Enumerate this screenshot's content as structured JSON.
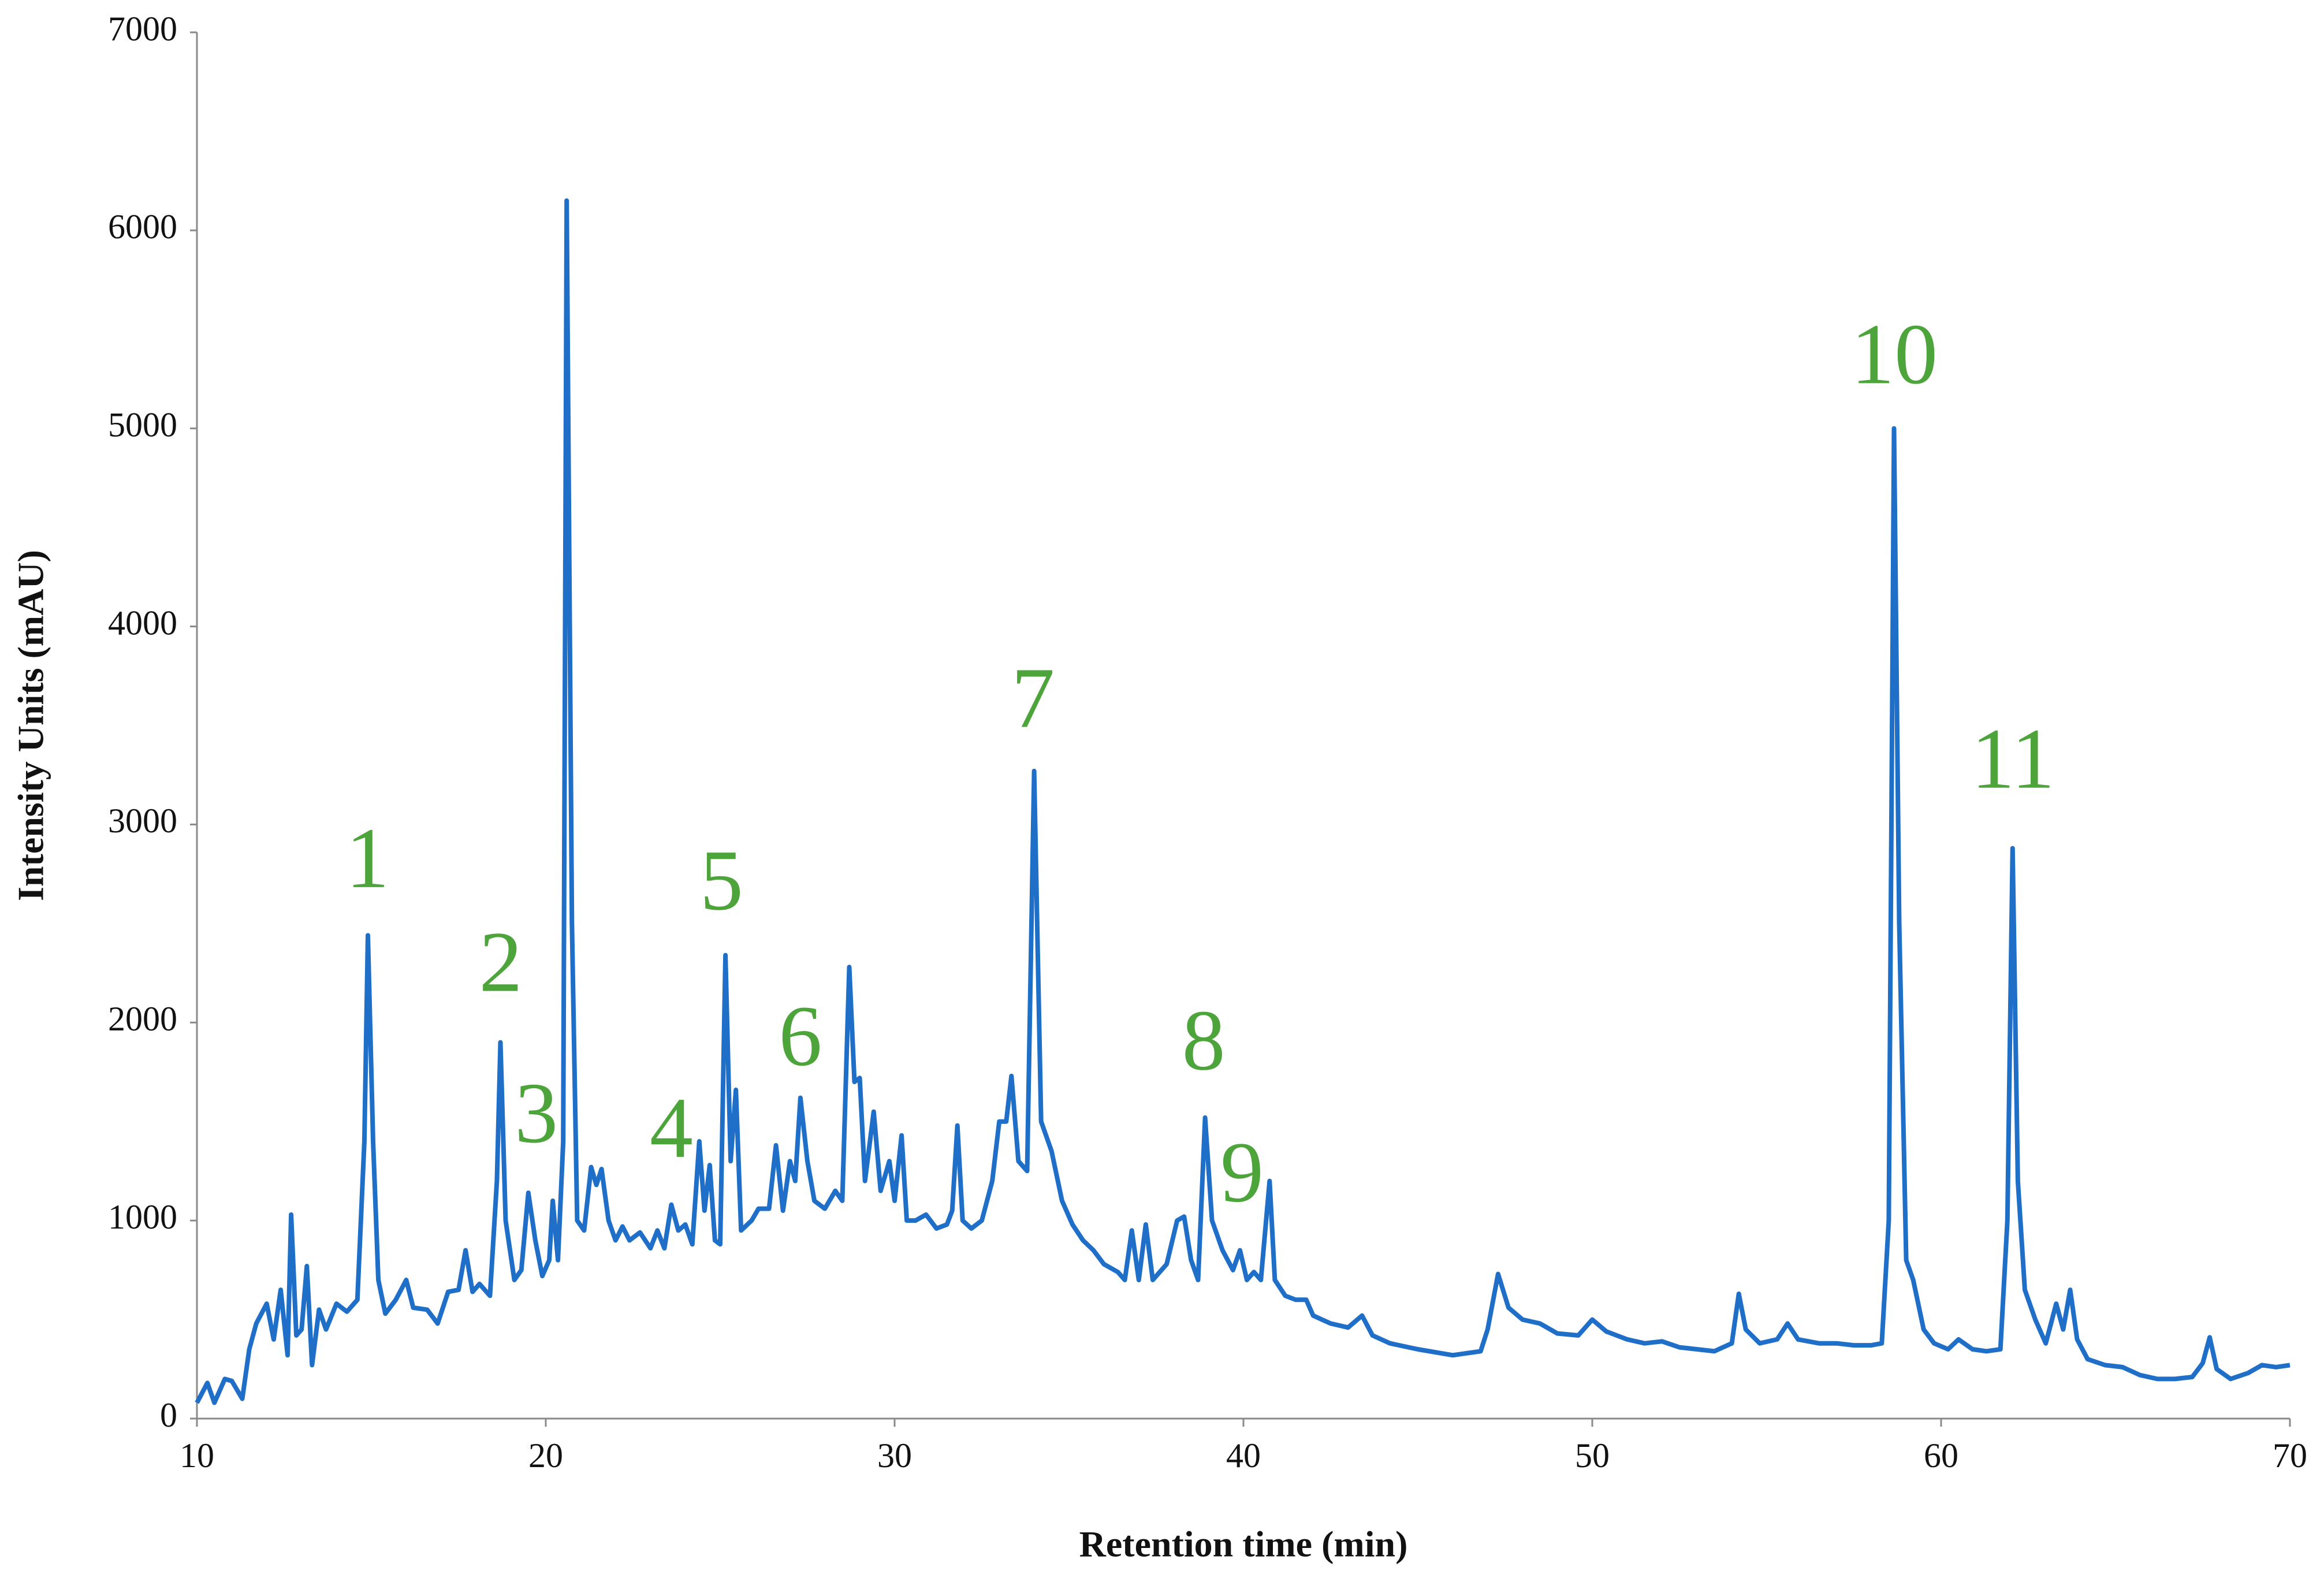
{
  "chart_data": {
    "type": "line",
    "xlabel": "Retention time (min)",
    "ylabel": "Intensity Units (mAU)",
    "color": "#1f6fc8",
    "annotation_color": "#4da43a",
    "xlim": [
      10,
      70
    ],
    "xticks": [
      10,
      20,
      30,
      40,
      50,
      60,
      70
    ],
    "ylim": [
      0,
      7000
    ],
    "yticks": [
      0,
      1000,
      2000,
      3000,
      4000,
      5000,
      6000,
      7000
    ],
    "grid": false,
    "x": [
      10.0,
      10.3,
      10.5,
      10.8,
      11.0,
      11.3,
      11.5,
      11.7,
      12.0,
      12.2,
      12.4,
      12.6,
      12.7,
      12.85,
      13.0,
      13.15,
      13.3,
      13.5,
      13.7,
      14.0,
      14.3,
      14.6,
      14.8,
      14.9,
      15.05,
      15.2,
      15.4,
      15.7,
      16.0,
      16.2,
      16.6,
      16.9,
      17.2,
      17.5,
      17.7,
      17.9,
      18.1,
      18.4,
      18.6,
      18.7,
      18.85,
      19.1,
      19.3,
      19.5,
      19.7,
      19.9,
      20.1,
      20.2,
      20.35,
      20.5,
      20.6,
      20.75,
      20.9,
      21.1,
      21.3,
      21.45,
      21.6,
      21.8,
      22.0,
      22.2,
      22.4,
      22.7,
      23.0,
      23.2,
      23.4,
      23.6,
      23.8,
      24.0,
      24.2,
      24.4,
      24.55,
      24.7,
      24.85,
      25.0,
      25.15,
      25.3,
      25.45,
      25.6,
      25.9,
      26.1,
      26.4,
      26.6,
      26.8,
      27.0,
      27.15,
      27.3,
      27.5,
      27.7,
      28.0,
      28.3,
      28.5,
      28.7,
      28.85,
      29.0,
      29.15,
      29.4,
      29.6,
      29.85,
      30.0,
      30.2,
      30.35,
      30.6,
      30.9,
      31.2,
      31.5,
      31.65,
      31.8,
      31.95,
      32.2,
      32.5,
      32.8,
      33.0,
      33.2,
      33.35,
      33.55,
      33.8,
      34.0,
      34.2,
      34.5,
      34.8,
      35.1,
      35.4,
      35.7,
      36.0,
      36.4,
      36.6,
      36.8,
      37.0,
      37.2,
      37.4,
      37.8,
      38.1,
      38.3,
      38.5,
      38.7,
      38.9,
      39.1,
      39.4,
      39.7,
      39.9,
      40.1,
      40.3,
      40.5,
      40.75,
      40.9,
      41.2,
      41.5,
      41.8,
      42.0,
      42.5,
      43.0,
      43.4,
      43.7,
      44.2,
      45.0,
      46.0,
      46.8,
      47.0,
      47.3,
      47.6,
      48.0,
      48.5,
      49.0,
      49.6,
      50.0,
      50.4,
      51.0,
      51.5,
      52.0,
      52.5,
      53.0,
      53.5,
      54.0,
      54.2,
      54.4,
      54.8,
      55.3,
      55.6,
      55.9,
      56.5,
      57.0,
      57.5,
      58.0,
      58.3,
      58.5,
      58.65,
      58.8,
      59.0,
      59.2,
      59.5,
      59.8,
      60.2,
      60.5,
      60.9,
      61.3,
      61.7,
      61.9,
      62.05,
      62.2,
      62.4,
      62.7,
      63.0,
      63.3,
      63.5,
      63.7,
      63.9,
      64.2,
      64.7,
      65.2,
      65.7,
      66.2,
      66.7,
      67.2,
      67.5,
      67.7,
      67.9,
      68.3,
      68.8,
      69.2,
      69.6,
      70.0
    ],
    "values": [
      80,
      180,
      80,
      200,
      190,
      100,
      350,
      480,
      580,
      400,
      650,
      320,
      1030,
      420,
      450,
      770,
      270,
      550,
      450,
      580,
      540,
      600,
      1400,
      2440,
      1400,
      700,
      530,
      600,
      700,
      560,
      550,
      480,
      640,
      650,
      850,
      640,
      680,
      620,
      1200,
      1900,
      1000,
      700,
      750,
      1140,
      900,
      720,
      800,
      1100,
      800,
      1400,
      6150,
      2500,
      1000,
      950,
      1270,
      1180,
      1260,
      1000,
      900,
      970,
      900,
      940,
      860,
      950,
      860,
      1080,
      950,
      980,
      880,
      1400,
      1050,
      1280,
      900,
      880,
      2340,
      1300,
      1660,
      950,
      1000,
      1060,
      1060,
      1380,
      1050,
      1300,
      1200,
      1620,
      1300,
      1100,
      1060,
      1150,
      1100,
      2280,
      1700,
      1720,
      1200,
      1550,
      1150,
      1300,
      1100,
      1430,
      1000,
      1000,
      1030,
      960,
      980,
      1050,
      1480,
      1000,
      960,
      1000,
      1200,
      1500,
      1500,
      1730,
      1300,
      1250,
      3270,
      1500,
      1350,
      1100,
      980,
      900,
      850,
      780,
      740,
      700,
      950,
      700,
      980,
      700,
      780,
      1000,
      1020,
      800,
      700,
      1520,
      1000,
      850,
      750,
      850,
      700,
      740,
      700,
      1200,
      700,
      620,
      600,
      600,
      520,
      480,
      460,
      520,
      420,
      380,
      350,
      320,
      340,
      450,
      730,
      560,
      500,
      480,
      430,
      420,
      500,
      440,
      400,
      380,
      390,
      360,
      350,
      340,
      380,
      630,
      450,
      380,
      400,
      480,
      400,
      380,
      380,
      370,
      370,
      380,
      1000,
      5000,
      2500,
      800,
      700,
      450,
      380,
      350,
      400,
      350,
      340,
      350,
      1000,
      2880,
      1200,
      650,
      500,
      380,
      580,
      450,
      650,
      400,
      300,
      270,
      260,
      220,
      200,
      200,
      210,
      280,
      410,
      250,
      200,
      230,
      270,
      260,
      270
    ],
    "annotations": [
      {
        "text": "1",
        "x": 14.89,
        "y": 2784
      },
      {
        "text": "2",
        "x": 18.71,
        "y": 2260
      },
      {
        "text": "3",
        "x": 19.73,
        "y": 1497
      },
      {
        "text": "4",
        "x": 23.6,
        "y": 1422
      },
      {
        "text": "5",
        "x": 25.04,
        "y": 2672
      },
      {
        "text": "6",
        "x": 27.3,
        "y": 1886
      },
      {
        "text": "7",
        "x": 33.97,
        "y": 3593
      },
      {
        "text": "8",
        "x": 38.86,
        "y": 1864
      },
      {
        "text": "9",
        "x": 39.96,
        "y": 1198
      },
      {
        "text": "10",
        "x": 58.66,
        "y": 5329
      },
      {
        "text": "11",
        "x": 62.06,
        "y": 3286
      }
    ]
  }
}
